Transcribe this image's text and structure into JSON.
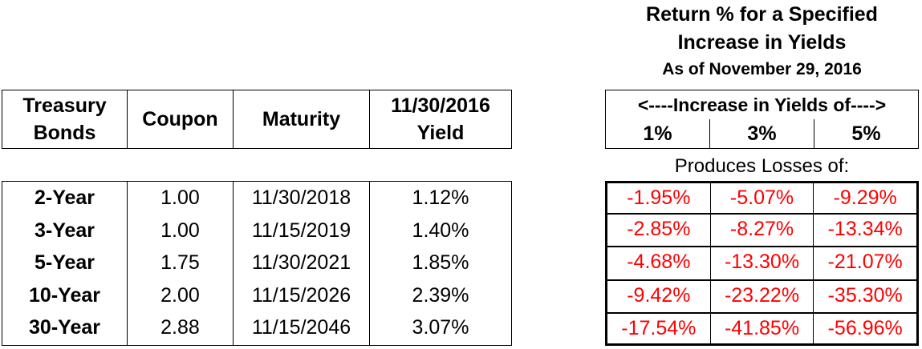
{
  "right_heading": {
    "line1": "Return % for a Specified",
    "line2": "Increase in Yields",
    "line3": "As of November 29, 2016"
  },
  "left_table": {
    "headers": {
      "bonds_line1": "Treasury",
      "bonds_line2": "Bonds",
      "coupon": "Coupon",
      "maturity": "Maturity",
      "yield_line1": "11/30/2016",
      "yield_line2": "Yield"
    },
    "rows": [
      {
        "bond": "2-Year",
        "coupon": "1.00",
        "maturity": "11/30/2018",
        "yield": "1.12%"
      },
      {
        "bond": "3-Year",
        "coupon": "1.00",
        "maturity": "11/15/2019",
        "yield": "1.40%"
      },
      {
        "bond": "5-Year",
        "coupon": "1.75",
        "maturity": "11/30/2021",
        "yield": "1.85%"
      },
      {
        "bond": "10-Year",
        "coupon": "2.00",
        "maturity": "11/15/2026",
        "yield": "2.39%"
      },
      {
        "bond": "30-Year",
        "coupon": "2.88",
        "maturity": "11/15/2046",
        "yield": "3.07%"
      }
    ]
  },
  "right_table": {
    "span_title": "<----Increase in Yields of---->",
    "increases": [
      "1%",
      "3%",
      "5%"
    ],
    "produces_label": "Produces Losses of:",
    "rows": [
      [
        "-1.95%",
        "-5.07%",
        "-9.29%"
      ],
      [
        "-2.85%",
        "-8.27%",
        "-13.34%"
      ],
      [
        "-4.68%",
        "-13.30%",
        "-21.07%"
      ],
      [
        "-9.42%",
        "-23.22%",
        "-35.30%"
      ],
      [
        "-17.54%",
        "-41.85%",
        "-56.96%"
      ]
    ],
    "loss_color": "#ff0000"
  }
}
